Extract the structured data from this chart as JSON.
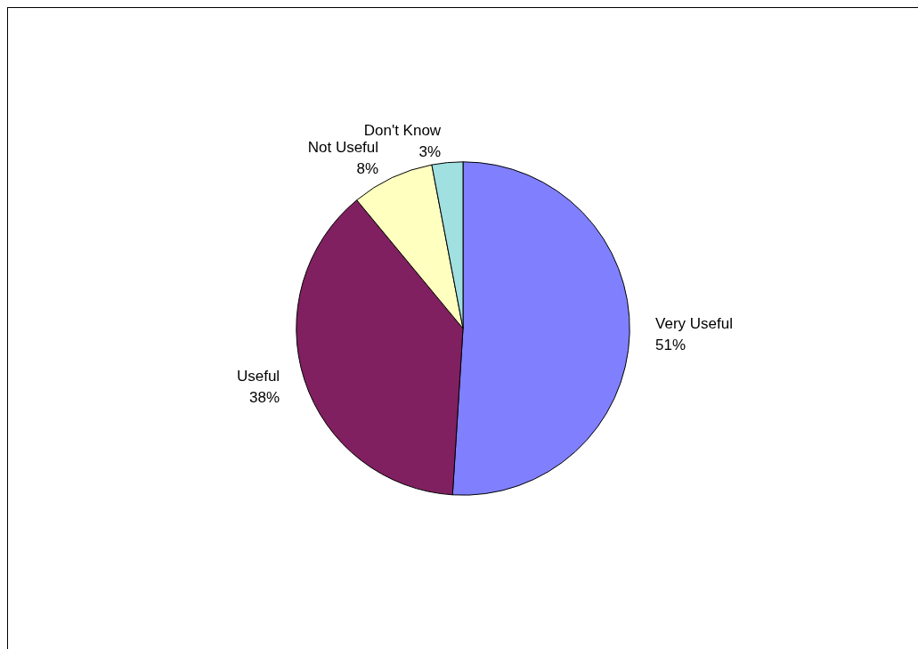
{
  "chart_data": {
    "type": "pie",
    "categories": [
      "Very Useful",
      "Useful",
      "Not Useful",
      "Don't Know"
    ],
    "values": [
      51,
      38,
      8,
      3
    ],
    "value_labels": [
      "51%",
      "38%",
      "8%",
      "3%"
    ],
    "colors": [
      "#8080ff",
      "#802060",
      "#ffffc0",
      "#a0e0e0"
    ],
    "legend": false
  }
}
